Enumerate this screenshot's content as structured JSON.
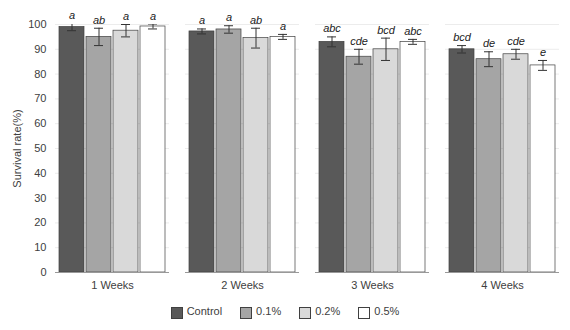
{
  "chart_data": {
    "type": "bar",
    "y_label": "Survival rate(%)",
    "categories": [
      "1 Weeks",
      "2 Weeks",
      "3 Weeks",
      "4 Weeks"
    ],
    "series": [
      {
        "name": "Control",
        "color": "#595959",
        "values": [
          99,
          97.2,
          93,
          90
        ],
        "errors": [
          1.5,
          1,
          2,
          1.5
        ],
        "annotations": [
          "a",
          "a",
          "abc",
          "bcd"
        ]
      },
      {
        "name": "0.1%",
        "color": "#a5a5a5",
        "values": [
          95,
          98,
          87,
          86
        ],
        "errors": [
          3.5,
          1.5,
          3,
          3
        ],
        "annotations": [
          "ab",
          "a",
          "cde",
          "de"
        ]
      },
      {
        "name": "0.2%",
        "color": "#d9d9d9",
        "values": [
          97.5,
          94.5,
          90,
          88
        ],
        "errors": [
          2.5,
          4,
          4.5,
          2
        ],
        "annotations": [
          "a",
          "ab",
          "bcd",
          "cde"
        ]
      },
      {
        "name": "0.5%",
        "color": "#ffffff",
        "values": [
          99.2,
          95,
          93,
          83.5
        ],
        "errors": [
          1,
          1,
          1,
          2
        ],
        "annotations": [
          "a",
          "a",
          "abc",
          "e"
        ]
      }
    ],
    "ylim": [
      0,
      100
    ],
    "yticks": [
      0,
      10,
      20,
      30,
      40,
      50,
      60,
      70,
      80,
      90,
      100
    ],
    "grid": true,
    "legend": "bottom"
  }
}
